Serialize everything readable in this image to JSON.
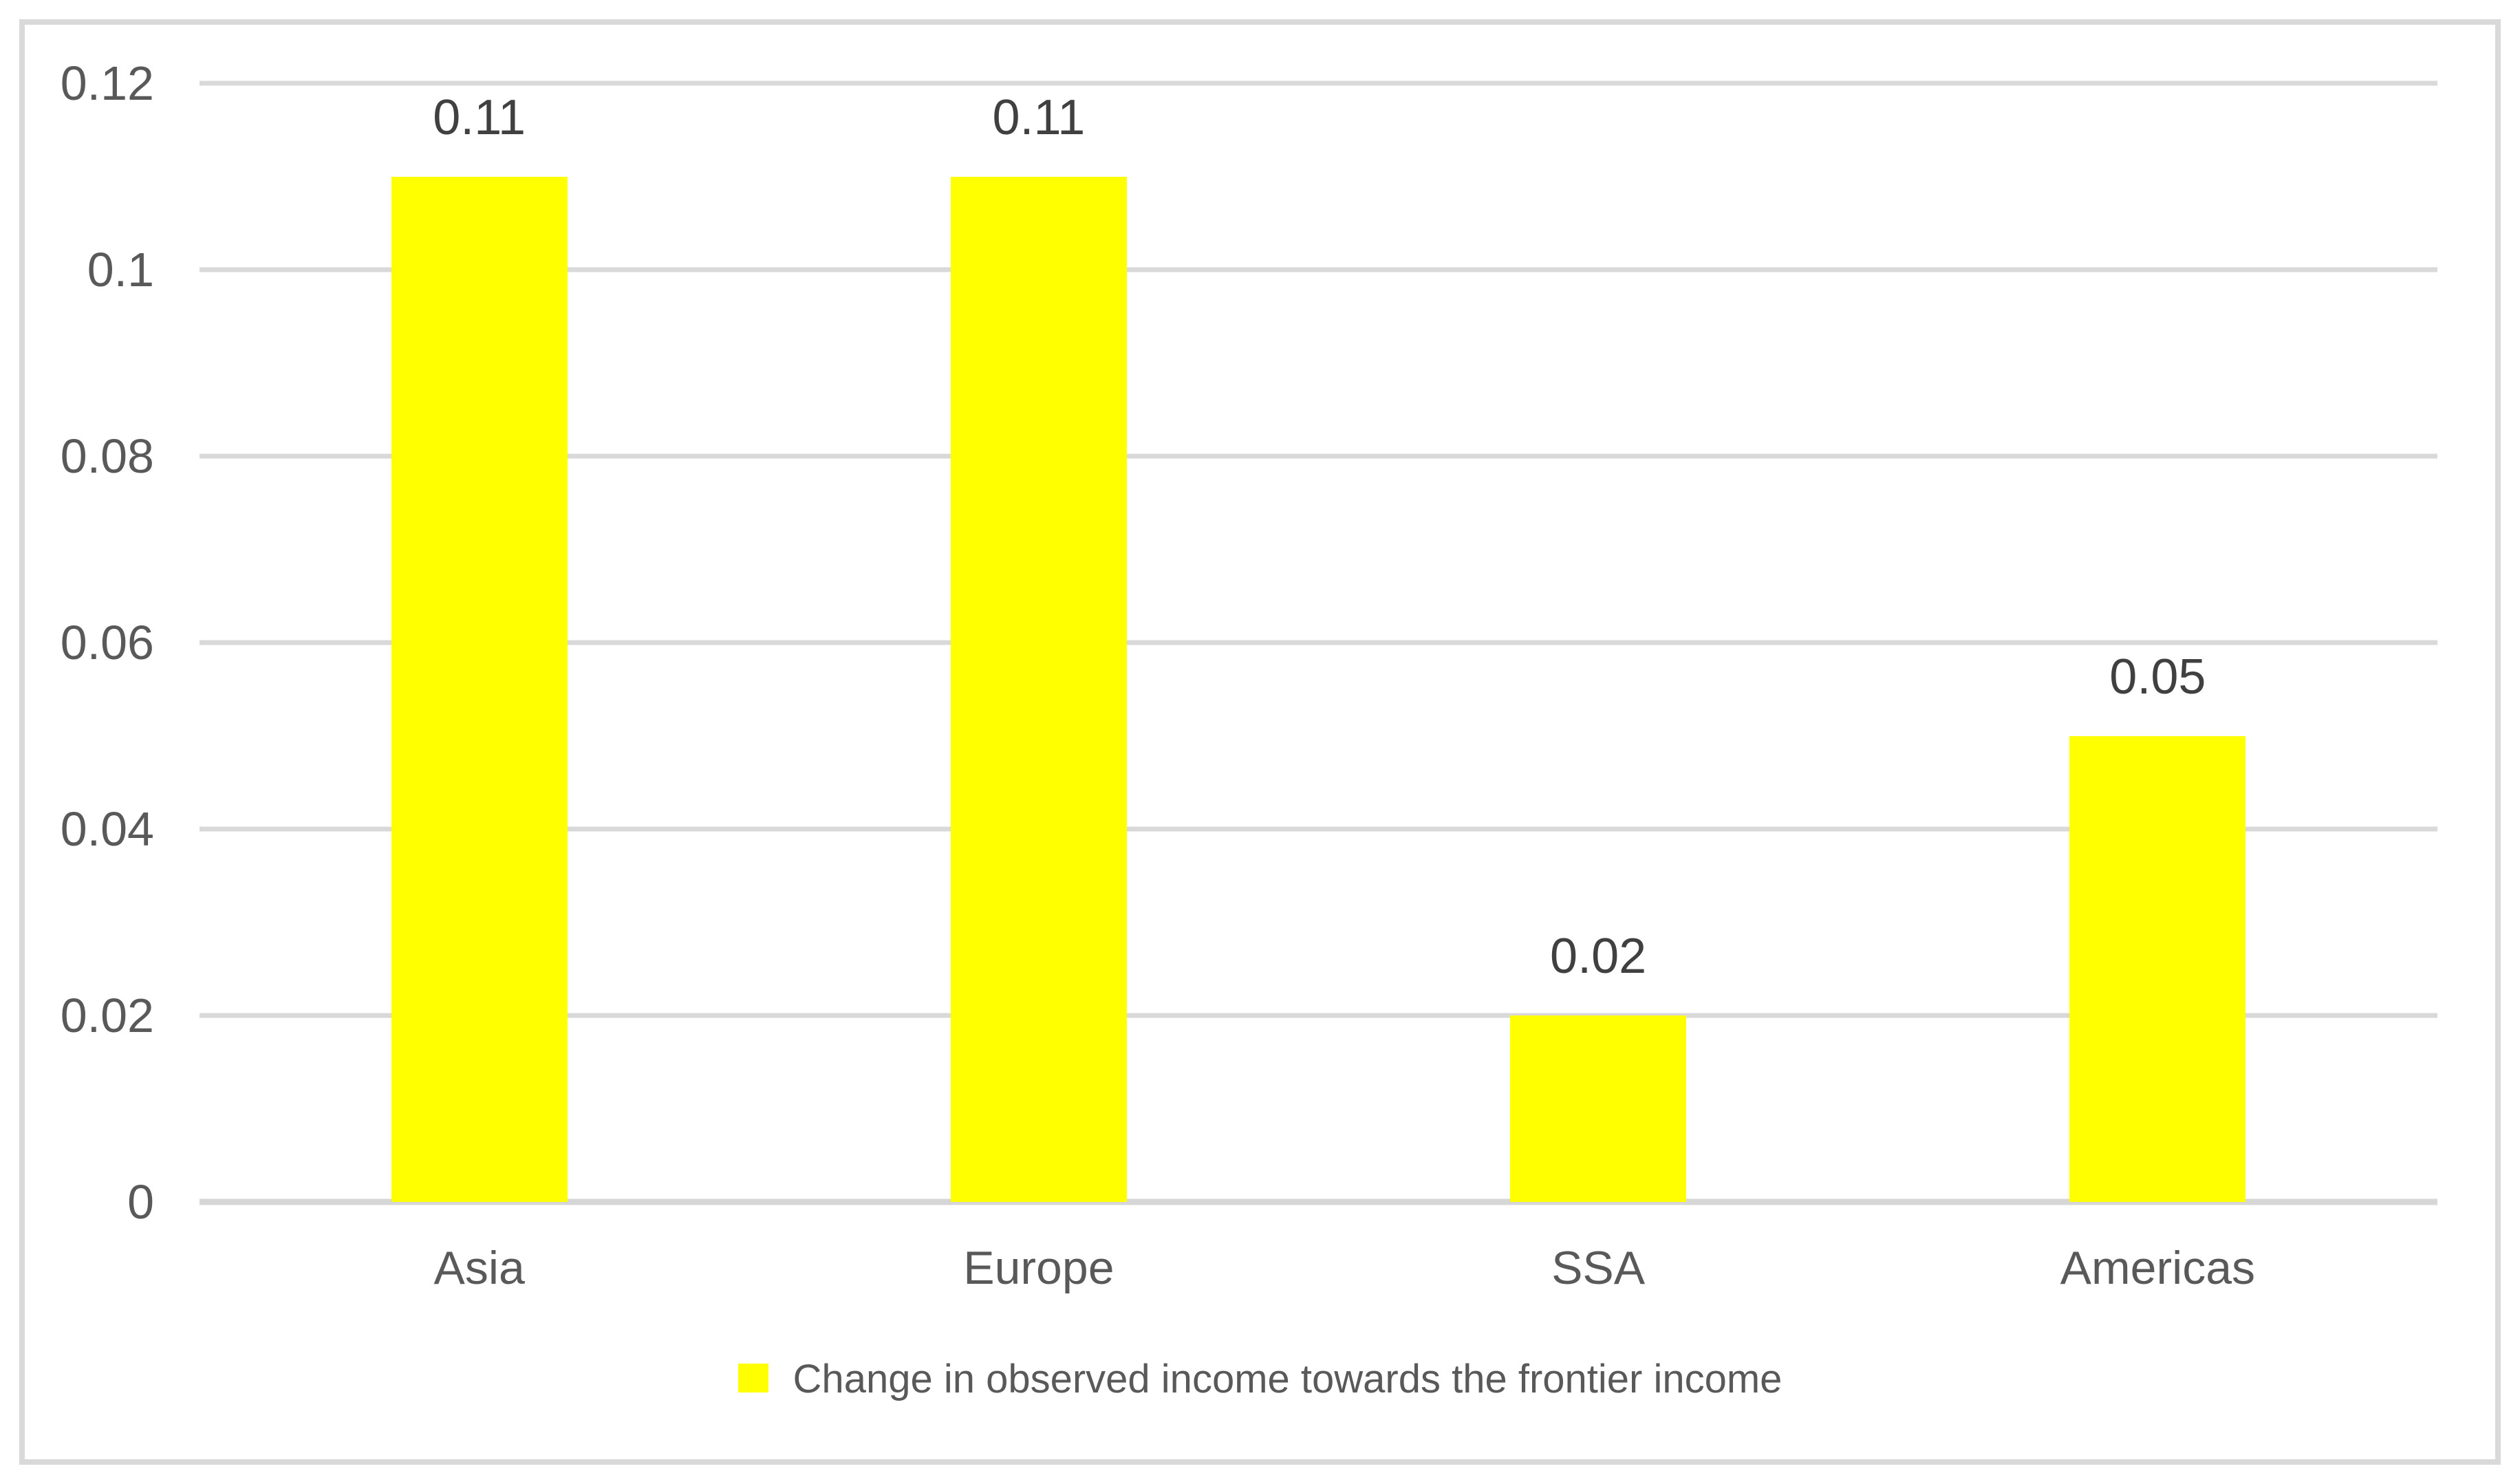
{
  "chart_data": {
    "type": "bar",
    "title": "",
    "xlabel": "",
    "ylabel": "",
    "categories": [
      "Asia",
      "Europe",
      "SSA",
      "Americas"
    ],
    "values": [
      0.11,
      0.11,
      0.02,
      0.05
    ],
    "data_labels": [
      "0.11",
      "0.11",
      "0.02",
      "0.05"
    ],
    "series_name": "Change in observed income towards the frontier income",
    "ylim": [
      0,
      0.12
    ],
    "ytick_labels": [
      "0.12",
      "0.1",
      "0.08",
      "0.06",
      "0.04",
      "0.02",
      "0"
    ],
    "ytick_values": [
      0.12,
      0.1,
      0.08,
      0.06,
      0.04,
      0.02,
      0
    ],
    "grid": true,
    "legend_position": "bottom",
    "colors": {
      "bar": "#ffff00",
      "gridline": "#d9d9d9",
      "axis_line": "#d6d6d6",
      "frame_border": "#d9d9d9",
      "tick_text": "#595959",
      "data_label_text": "#404040",
      "legend_text": "#595959",
      "background": "#ffffff"
    }
  },
  "legend": {
    "label": "Change in observed income towards the frontier income",
    "swatch_color": "#ffff00"
  }
}
